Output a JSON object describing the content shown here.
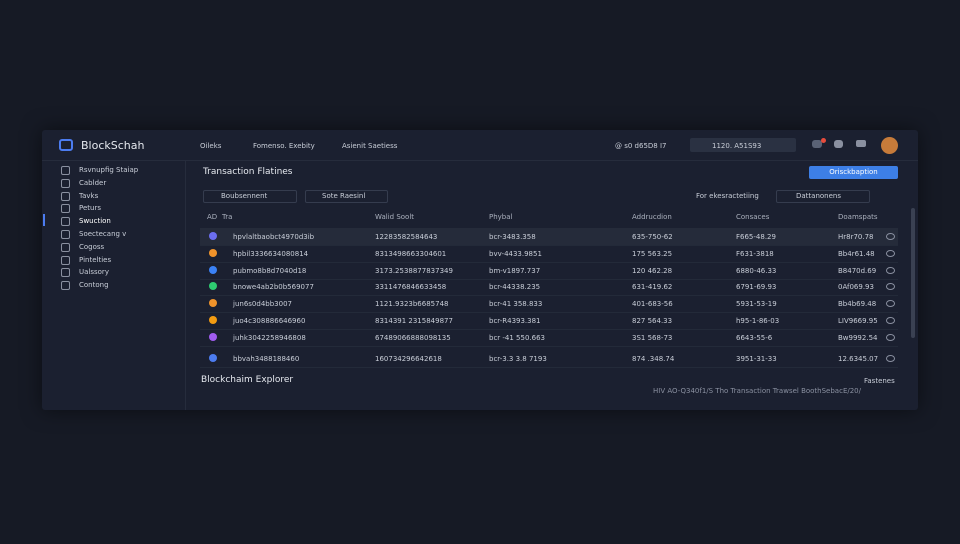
{
  "brand": "BlockSchah",
  "nav": [
    "Oileks",
    "Fomenso. Exebity",
    "Asienit Saetiess"
  ],
  "status": "@ s0 d65D8 I7",
  "search": "1120. A51S93",
  "sidebar": [
    "Rsvnupfig Staiap",
    "Cablder",
    "Tavks",
    "Peturs",
    "Swuction",
    "Soectecang v",
    "Cogoss",
    "Pintelties",
    "Ualssory",
    "Contong"
  ],
  "active_index": 4,
  "heading": "Transaction Flatines",
  "button": "Orisckbaption",
  "filters": [
    "Boubsennent",
    "Sote Raesinl"
  ],
  "filter_label": "For ekesractetiing",
  "filter_right": "Dattanonens",
  "table": {
    "headers": [
      "AD",
      "Tra",
      "Walid Soolt",
      "Phybal",
      "Addrucdion",
      "Consaces",
      "Doamspats"
    ],
    "row_colors": [
      "#6b6ef0",
      "#f0932b",
      "#3b82f6",
      "#2ecc71",
      "#f0932b",
      "#f39c12",
      "#a05cf0",
      "#4c7cf0"
    ],
    "rows": [
      [
        "hpvlaltbaobct4970d3ib",
        "12283582584643",
        "bcr-3483.358",
        "635-750-62",
        "F665-48.29",
        "Hr8r70.78"
      ],
      [
        "hpbil3336634080814",
        "8313498663304601",
        "bvv-4433.9851",
        "175 563.25",
        "F631-3818",
        "Bb4r61.48"
      ],
      [
        "pubmo8b8d7040d18",
        "3173.2538877837349",
        "bm-v1897.737",
        "120 462.28",
        "6880-46.33",
        "B8470d.69"
      ],
      [
        "bnowe4ab2b0b569077",
        "3311476846633458",
        "bcr-44338.235",
        "631-419.62",
        "6791-69.93",
        "0Af069.93"
      ],
      [
        "jun6s0d4bb3007",
        "1121.9323b6685748",
        "bcr-41 358.833",
        "401-683-56",
        "5931-53-19",
        "Bb4b69.48"
      ],
      [
        "juo4c308886646960",
        "8314391 2315849877",
        "bcr-R4393.381",
        "827 564.33",
        "h95-1-86-03",
        "LIV9669.95"
      ],
      [
        "juhk3042258946808",
        "67489066888098135",
        "bcr -41 550.663",
        "3S1 568-73",
        "6643-55-6",
        "Bw9992.54"
      ],
      [
        "bbvah3488188460",
        "160734296642618",
        "bcr-3.3 3.8 7193",
        "874 .348.74",
        "3951-31-33",
        "12.6345.07"
      ]
    ]
  },
  "footer_title": "Blockchaim Explorer",
  "footer_link": "Fastenes",
  "footer_note": "HIV AO-Q340f1/S Tho Transaction Trawsel BoothSebacE/20/"
}
